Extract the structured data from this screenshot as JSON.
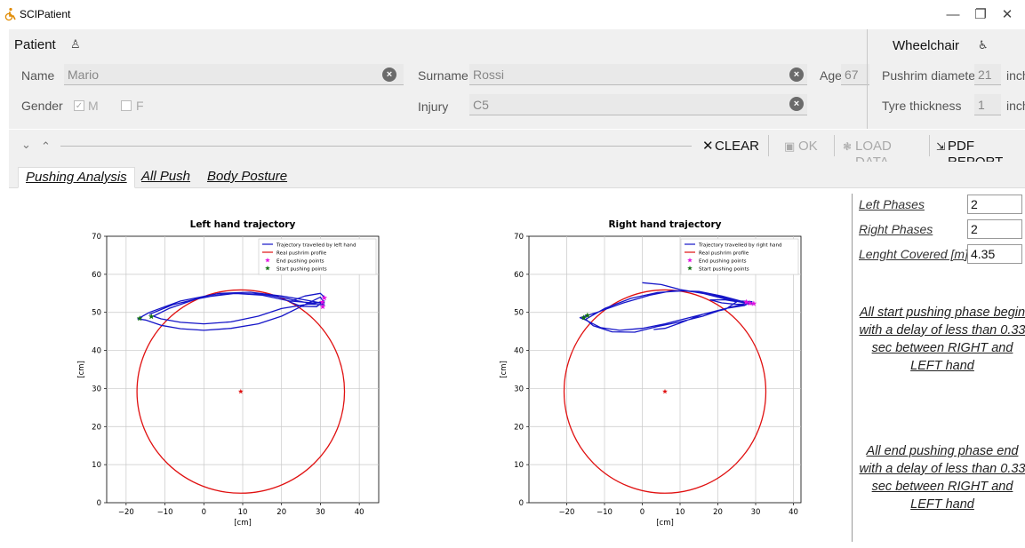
{
  "window": {
    "title": "SCIPatient",
    "minimize": "—",
    "restore": "❐",
    "close": "✕"
  },
  "patient": {
    "section_title": "Patient",
    "name_label": "Name",
    "name_value": "Mario",
    "surname_label": "Surname",
    "surname_value": "Rossi",
    "age_label": "Age",
    "age_value": "67",
    "gender_label": "Gender",
    "gender_m": "M",
    "gender_f": "F",
    "injury_label": "Injury",
    "injury_value": "C5"
  },
  "wheelchair": {
    "section_title": "Wheelchair",
    "pushrim_label": "Pushrim diameter",
    "pushrim_value": "21",
    "pushrim_unit": "inch",
    "tyre_label": "Tyre thickness",
    "tyre_value": "1",
    "tyre_unit": "inch"
  },
  "toolbar": {
    "collapse_down": "⌄",
    "collapse_up": "⌃",
    "clear": "CLEAR",
    "ok": "OK",
    "load": "LOAD DATA",
    "pdf": "PDF REPORT"
  },
  "tabs": [
    {
      "label": "Pushing Analysis",
      "active": true
    },
    {
      "label": "All Push",
      "active": false
    },
    {
      "label": "Body Posture",
      "active": false
    }
  ],
  "results": {
    "left_phases_label": "Left Phases",
    "left_phases_value": "2",
    "right_phases_label": "Right Phases",
    "right_phases_value": "2",
    "length_label": "Lenght Covered [m]",
    "length_value": "4.35",
    "start_msg": "All start pushing phase begin with a delay of less than 0.33 sec between RIGHT and LEFT hand",
    "end_msg": "All end pushing phase end with a delay of less than 0.33 sec between RIGHT and LEFT hand"
  },
  "colors": {
    "trajectory": "#1515c8",
    "profile": "#e01010",
    "end_point": "#e010e0",
    "start_point": "#107010"
  },
  "chart_data": [
    {
      "type": "line",
      "title": "Left hand trajectory",
      "xlabel": "[cm]",
      "ylabel": "[cm]",
      "xlim": [
        -25,
        45
      ],
      "ylim": [
        0,
        70
      ],
      "xticks": [
        "−20",
        "−10",
        "0",
        "10",
        "20",
        "30",
        "40"
      ],
      "yticks": [
        "0",
        "10",
        "20",
        "30",
        "40",
        "50",
        "60",
        "70"
      ],
      "grid": true,
      "legend": "top-right",
      "series": [
        {
          "name": "Trajectory travelled by left hand",
          "kind": "trajectory",
          "points": [
            [
              -14,
              49.5
            ],
            [
              -8,
              52
            ],
            [
              0,
              54
            ],
            [
              8,
              55
            ],
            [
              15,
              54.5
            ],
            [
              22,
              53
            ],
            [
              28,
              52.5
            ],
            [
              31,
              52.5
            ],
            [
              30,
              54
            ],
            [
              26,
              52
            ],
            [
              20,
              49
            ],
            [
              14,
              47
            ],
            [
              7,
              45.8
            ],
            [
              0,
              45.3
            ],
            [
              -6,
              45.7
            ],
            [
              -11,
              46.6
            ],
            [
              -15,
              48
            ],
            [
              -17,
              48.3
            ],
            [
              -14,
              50
            ],
            [
              -6,
              53
            ],
            [
              4,
              55
            ],
            [
              12,
              55.3
            ],
            [
              20,
              54.3
            ],
            [
              26,
              53.3
            ],
            [
              30,
              52.5
            ],
            [
              31,
              52
            ],
            [
              27,
              52.2
            ],
            [
              20,
              51
            ],
            [
              14,
              49
            ],
            [
              7,
              47.5
            ],
            [
              0,
              47
            ],
            [
              -6,
              47.4
            ],
            [
              -11,
              48.3
            ],
            [
              -13,
              49
            ],
            [
              -9,
              51
            ],
            [
              -2,
              53.5
            ],
            [
              6,
              55
            ],
            [
              15,
              54.8
            ],
            [
              22,
              53.5
            ],
            [
              28,
              52.2
            ],
            [
              31,
              53
            ],
            [
              29,
              51.5
            ],
            [
              25,
              51.6
            ],
            [
              22,
              52.8
            ],
            [
              26,
              54.3
            ],
            [
              30,
              55
            ],
            [
              31,
              54
            ]
          ]
        },
        {
          "name": "Real pushrim profile",
          "kind": "circle",
          "cx": 9.5,
          "cy": 29.2,
          "r": 26.7
        },
        {
          "name": "End pushing points",
          "kind": "markers",
          "points": [
            [
              30.5,
              52.7
            ],
            [
              31,
              53.8
            ],
            [
              30.6,
              51.5
            ]
          ]
        },
        {
          "name": "Start pushing points",
          "kind": "markers",
          "points": [
            [
              -16.5,
              48.4
            ],
            [
              -13.5,
              48.9
            ]
          ]
        },
        {
          "name": "center",
          "kind": "center",
          "points": [
            [
              9.5,
              29.2
            ]
          ]
        }
      ]
    },
    {
      "type": "line",
      "title": "Right hand trajectory",
      "xlabel": "[cm]",
      "ylabel": "[cm]",
      "xlim": [
        -30,
        42
      ],
      "ylim": [
        0,
        70
      ],
      "xticks": [
        "−20",
        "−10",
        "0",
        "10",
        "20",
        "30",
        "40"
      ],
      "yticks": [
        "0",
        "10",
        "20",
        "30",
        "40",
        "50",
        "60",
        "70"
      ],
      "grid": true,
      "legend": "top-right",
      "series": [
        {
          "name": "Trajectory travelled by right hand",
          "kind": "trajectory",
          "points": [
            [
              0,
              57.8
            ],
            [
              5,
              57.3
            ],
            [
              10,
              56
            ],
            [
              16,
              55
            ],
            [
              22,
              53.5
            ],
            [
              27,
              52.5
            ],
            [
              29,
              52.5
            ],
            [
              24,
              51.5
            ],
            [
              18,
              50
            ],
            [
              12,
              48.5
            ],
            [
              6,
              47
            ],
            [
              0,
              45.8
            ],
            [
              -6,
              45.3
            ],
            [
              -11,
              46
            ],
            [
              -15,
              48
            ],
            [
              -16.5,
              48.6
            ],
            [
              -12,
              50
            ],
            [
              -5,
              52.5
            ],
            [
              2,
              54.5
            ],
            [
              8,
              55.7
            ],
            [
              15,
              55.5
            ],
            [
              21,
              54.3
            ],
            [
              26,
              53
            ],
            [
              29,
              52.8
            ],
            [
              27,
              51.8
            ],
            [
              22,
              51
            ],
            [
              16,
              49
            ],
            [
              10,
              47.5
            ],
            [
              4,
              46.3
            ],
            [
              -2,
              44.8
            ],
            [
              -8,
              44.9
            ],
            [
              -13,
              46.5
            ],
            [
              -15,
              48.2
            ],
            [
              -10,
              51
            ],
            [
              -3,
              53.7
            ],
            [
              4,
              55.2
            ],
            [
              11,
              55.7
            ],
            [
              17,
              55
            ],
            [
              23,
              53.5
            ],
            [
              27,
              52.7
            ],
            [
              29.5,
              52.3
            ],
            [
              25,
              52.1
            ],
            [
              21,
              52.5
            ],
            [
              18,
              53.3
            ],
            [
              22,
              53.3
            ],
            [
              25,
              52.8
            ],
            [
              22,
              50.8
            ],
            [
              16,
              49.5
            ],
            [
              10,
              47.2
            ],
            [
              6,
              45.8
            ],
            [
              3,
              45.5
            ]
          ]
        },
        {
          "name": "Real pushrim profile",
          "kind": "circle",
          "cx": 6,
          "cy": 29.2,
          "r": 26.7
        },
        {
          "name": "End pushing points",
          "kind": "markers",
          "points": [
            [
              27.5,
              52.7
            ],
            [
              29.5,
              52.3
            ],
            [
              28.5,
              52.4
            ]
          ]
        },
        {
          "name": "Start pushing points",
          "kind": "markers",
          "points": [
            [
              -15.5,
              48.6
            ],
            [
              -14.5,
              49.2
            ]
          ]
        },
        {
          "name": "center",
          "kind": "center",
          "points": [
            [
              6,
              29.2
            ]
          ]
        }
      ]
    }
  ]
}
